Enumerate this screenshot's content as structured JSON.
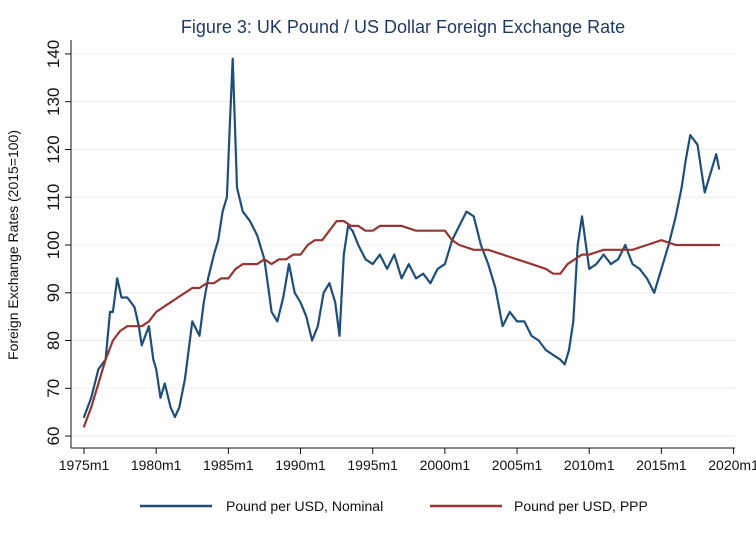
{
  "chart_data": {
    "type": "line",
    "title": "Figure 3: UK Pound / US Dollar Foreign Exchange Rate",
    "xlabel": "",
    "ylabel": "Foreign Exchange Rates (2015=100)",
    "xlim": [
      1975,
      2019.1
    ],
    "ylim": [
      60,
      141
    ],
    "xticks": [
      1975,
      1980,
      1985,
      1990,
      1995,
      2000,
      2005,
      2010,
      2015,
      2020
    ],
    "xtick_labels": [
      "1975m1",
      "1980m1",
      "1985m1",
      "1990m1",
      "1995m1",
      "2000m1",
      "2005m1",
      "2010m1",
      "2015m1",
      "2020m1"
    ],
    "yticks": [
      60,
      70,
      80,
      90,
      100,
      110,
      120,
      130,
      140
    ],
    "ytick_labels": [
      "60",
      "70",
      "80",
      "90",
      "100",
      "110",
      "120",
      "130",
      "140"
    ],
    "grid": true,
    "legend_position": "bottom",
    "series": [
      {
        "name": "Pound per USD, Nominal",
        "color": "#1f4e79",
        "x": [
          1975.0,
          1975.5,
          1976.0,
          1976.5,
          1976.8,
          1977.0,
          1977.3,
          1977.6,
          1978.0,
          1978.5,
          1978.8,
          1979.0,
          1979.5,
          1979.8,
          1980.0,
          1980.3,
          1980.6,
          1981.0,
          1981.3,
          1981.6,
          1982.0,
          1982.5,
          1983.0,
          1983.3,
          1983.6,
          1984.0,
          1984.3,
          1984.6,
          1984.9,
          1985.1,
          1985.3,
          1985.6,
          1986.0,
          1986.5,
          1987.0,
          1987.5,
          1988.0,
          1988.4,
          1988.8,
          1989.2,
          1989.6,
          1990.0,
          1990.4,
          1990.8,
          1991.2,
          1991.6,
          1992.0,
          1992.4,
          1992.7,
          1993.0,
          1993.3,
          1993.6,
          1994.0,
          1994.5,
          1995.0,
          1995.5,
          1996.0,
          1996.5,
          1997.0,
          1997.5,
          1998.0,
          1998.5,
          1999.0,
          1999.5,
          2000.0,
          2000.5,
          2001.0,
          2001.5,
          2002.0,
          2002.5,
          2003.0,
          2003.5,
          2004.0,
          2004.5,
          2005.0,
          2005.5,
          2006.0,
          2006.5,
          2007.0,
          2007.5,
          2008.0,
          2008.3,
          2008.6,
          2008.9,
          2009.2,
          2009.5,
          2010.0,
          2010.5,
          2011.0,
          2011.5,
          2012.0,
          2012.5,
          2013.0,
          2013.5,
          2014.0,
          2014.5,
          2015.0,
          2015.5,
          2016.0,
          2016.4,
          2016.7,
          2017.0,
          2017.5,
          2018.0,
          2018.5,
          2018.8,
          2019.0
        ],
        "values": [
          64,
          68,
          74,
          76,
          86,
          86,
          93,
          89,
          89,
          87,
          83,
          79,
          83,
          76,
          74,
          68,
          71,
          66,
          64,
          66,
          72,
          84,
          81,
          88,
          93,
          98,
          101,
          107,
          110,
          125,
          139,
          112,
          107,
          105,
          102,
          97,
          86,
          84,
          89,
          96,
          90,
          88,
          85,
          80,
          83,
          90,
          92,
          88,
          81,
          98,
          104,
          103,
          100,
          97,
          96,
          98,
          95,
          98,
          93,
          96,
          93,
          94,
          92,
          95,
          96,
          101,
          104,
          107,
          106,
          100,
          96,
          91,
          83,
          86,
          84,
          84,
          81,
          80,
          78,
          77,
          76,
          75,
          78,
          84,
          100,
          106,
          95,
          96,
          98,
          96,
          97,
          100,
          96,
          95,
          93,
          90,
          95,
          100,
          106,
          112,
          118,
          123,
          121,
          111,
          116,
          119,
          116
        ]
      },
      {
        "name": "Pound per USD, PPP",
        "color": "#943634",
        "x": [
          1975.0,
          1975.5,
          1976.0,
          1976.5,
          1977.0,
          1977.5,
          1978.0,
          1978.5,
          1979.0,
          1979.5,
          1980.0,
          1980.5,
          1981.0,
          1981.5,
          1982.0,
          1982.5,
          1983.0,
          1983.5,
          1984.0,
          1984.5,
          1985.0,
          1985.5,
          1986.0,
          1986.5,
          1987.0,
          1987.5,
          1988.0,
          1988.5,
          1989.0,
          1989.5,
          1990.0,
          1990.5,
          1991.0,
          1991.5,
          1992.0,
          1992.5,
          1993.0,
          1993.5,
          1994.0,
          1994.5,
          1995.0,
          1995.5,
          1996.0,
          1997.0,
          1998.0,
          1999.0,
          2000.0,
          2000.5,
          2001.0,
          2002.0,
          2003.0,
          2004.0,
          2005.0,
          2006.0,
          2007.0,
          2007.5,
          2008.0,
          2008.5,
          2009.0,
          2009.5,
          2010.0,
          2011.0,
          2012.0,
          2013.0,
          2014.0,
          2015.0,
          2016.0,
          2017.0,
          2018.0,
          2019.0
        ],
        "values": [
          62,
          66,
          71,
          76,
          80,
          82,
          83,
          83,
          83,
          84,
          86,
          87,
          88,
          89,
          90,
          91,
          91,
          92,
          92,
          93,
          93,
          95,
          96,
          96,
          96,
          97,
          96,
          97,
          97,
          98,
          98,
          100,
          101,
          101,
          103,
          105,
          105,
          104,
          104,
          103,
          103,
          104,
          104,
          104,
          103,
          103,
          103,
          101,
          100,
          99,
          99,
          98,
          97,
          96,
          95,
          94,
          94,
          96,
          97,
          98,
          98,
          99,
          99,
          99,
          100,
          101,
          100,
          100,
          100,
          100
        ]
      }
    ]
  }
}
